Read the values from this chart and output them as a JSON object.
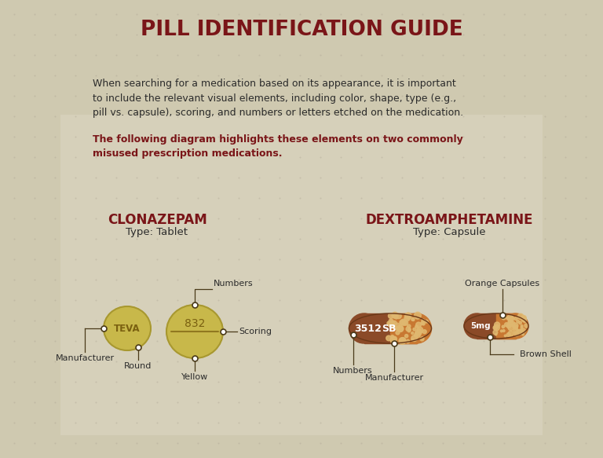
{
  "title": "PILL IDENTIFICATION GUIDE",
  "title_color": "#7A1518",
  "bg_color": "#CFC9B0",
  "bg_center_color": "#DDD8C4",
  "body_text_normal": "When searching for a medication based on its appearance, it is important\nto include the relevant visual elements, including color, shape, type (e.g.,\npill vs. capsule), scoring, and numbers or letters etched on the medication.",
  "body_text_bold": "The following diagram highlights these elements on two commonly\nmisused prescription medications.",
  "body_text_color": "#2B2B2B",
  "body_bold_color": "#7A1518",
  "clonazepam_title": "CLONAZEPAM",
  "clonazepam_type": "Type: Tablet",
  "clonazepam_title_color": "#7A1518",
  "dextro_title": "DEXTROAMPHETAMINE",
  "dextro_type": "Type: Capsule",
  "dextro_title_color": "#7A1518",
  "pill_yellow": "#C8B84A",
  "pill_yellow_dark": "#A89830",
  "pill_yellow_text": "#7A6010",
  "capsule_brown": "#8B4A28",
  "capsule_orange": "#C87832",
  "capsule_dot_color": "#D4A060",
  "capsule_dot_color2": "#E0B870",
  "annotation_color": "#2B2B2B",
  "line_color": "#4A3A1A",
  "dot_color": "#4A3A1A",
  "label_color": "#2B2B2B",
  "label_fontsize": 8.0,
  "title_fontsize": 19,
  "body_fontsize": 9.0,
  "section_title_fontsize": 12,
  "section_type_fontsize": 9.5
}
